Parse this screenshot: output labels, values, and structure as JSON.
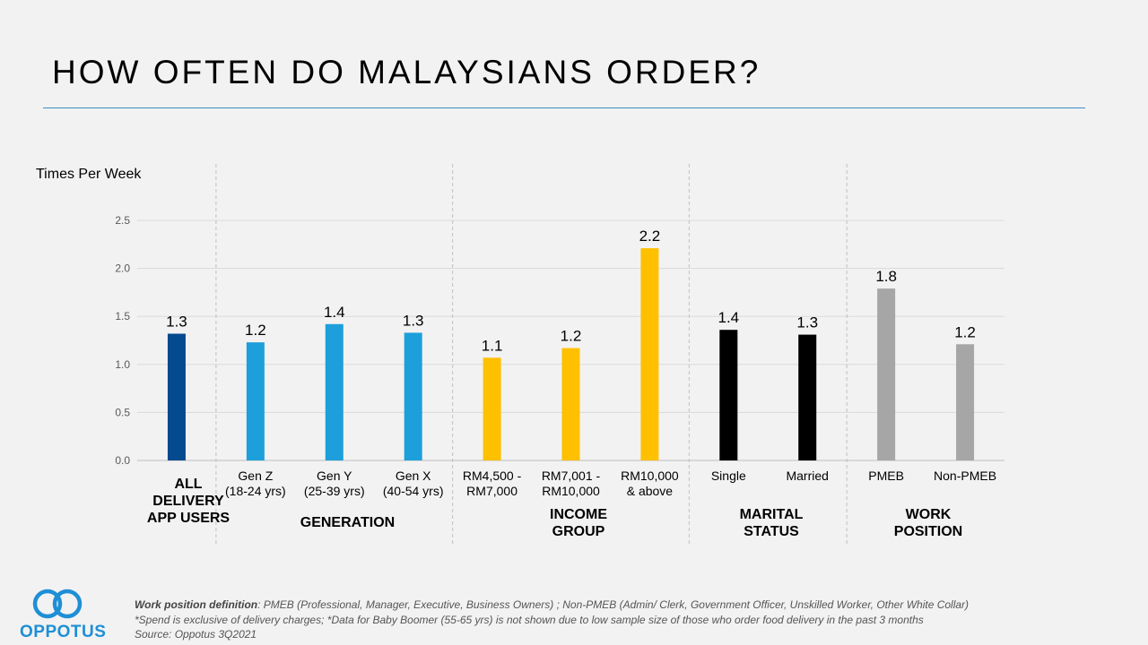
{
  "page": {
    "title": "HOW OFTEN DO MALAYSIANS ORDER?"
  },
  "chart_data": {
    "type": "bar",
    "ylabel": "Times Per Week",
    "ylim": [
      0,
      2.5
    ],
    "yticks": [
      "0.0",
      "0.5",
      "1.0",
      "1.5",
      "2.0",
      "2.5"
    ],
    "categories": [
      [
        "",
        ""
      ],
      [
        "Gen Z",
        "(18-24 yrs)"
      ],
      [
        "Gen Y",
        "(25-39 yrs)"
      ],
      [
        "Gen X",
        "(40-54 yrs)"
      ],
      [
        "RM4,500 -",
        "RM7,000"
      ],
      [
        "RM7,001 -",
        "RM10,000"
      ],
      [
        "RM10,000",
        "& above"
      ],
      [
        "Single",
        ""
      ],
      [
        "Married",
        ""
      ],
      [
        "PMEB",
        ""
      ],
      [
        "Non-PMEB",
        ""
      ]
    ],
    "values": [
      1.32,
      1.23,
      1.42,
      1.33,
      1.07,
      1.17,
      2.21,
      1.36,
      1.31,
      1.79,
      1.21
    ],
    "value_labels": [
      "1.3",
      "1.2",
      "1.4",
      "1.3",
      "1.1",
      "1.2",
      "2.2",
      "1.4",
      "1.3",
      "1.8",
      "1.2"
    ],
    "colors": [
      "#034a8f",
      "#1d9fdb",
      "#1d9fdb",
      "#1d9fdb",
      "#ffc000",
      "#ffc000",
      "#ffc000",
      "#000000",
      "#000000",
      "#a6a6a6",
      "#a6a6a6"
    ],
    "groups": [
      {
        "label": [
          "ALL",
          "DELIVERY",
          "APP USERS"
        ],
        "bars": [
          0
        ]
      },
      {
        "label": [
          "GENERATION"
        ],
        "bars": [
          1,
          2,
          3
        ]
      },
      {
        "label": [
          "INCOME",
          "GROUP"
        ],
        "bars": [
          4,
          5,
          6
        ]
      },
      {
        "label": [
          "MARITAL",
          "STATUS"
        ],
        "bars": [
          7,
          8
        ]
      },
      {
        "label": [
          "WORK",
          "POSITION"
        ],
        "bars": [
          9,
          10
        ]
      }
    ]
  },
  "footnotes": {
    "line1_bold": "Work position definition",
    "line1_rest": ": PMEB (Professional, Manager, Executive, Business Owners) ; Non-PMEB (Admin/ Clerk, Government Officer, Unskilled Worker, Other White Collar)",
    "line2": "*Spend is exclusive of delivery charges; *Data for Baby Boomer (55-65 yrs) is not shown due to low sample size of those who order food delivery in the past 3 months",
    "line3": "Source: Oppotus 3Q2021"
  },
  "logo": {
    "text": "OPPOTUS",
    "color": "#1e8fd6"
  }
}
